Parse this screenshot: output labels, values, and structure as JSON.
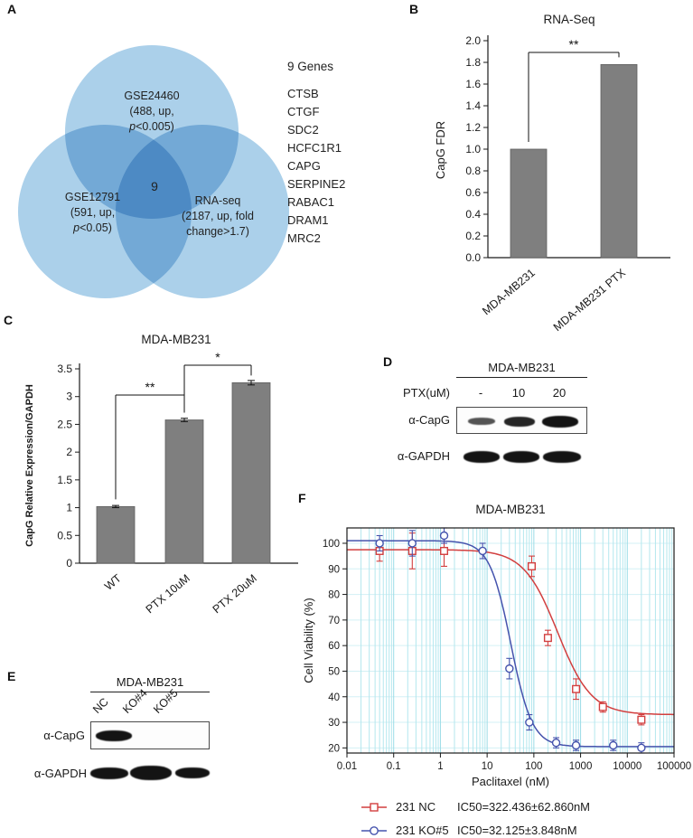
{
  "panels": {
    "a": {
      "label": "A",
      "venn": {
        "top": {
          "name": "GSE24460",
          "line2": "(488, up,",
          "p": "p",
          "line3": "<0.005)"
        },
        "left": {
          "name": "GSE12791",
          "line2": "(591, up,",
          "p": "p",
          "line3": "<0.05)"
        },
        "right": {
          "name": "RNA-seq",
          "line2": "(2187, up, fold",
          "line3": "change>1.7)"
        },
        "overlap_count": "9"
      },
      "genes": {
        "title": "9 Genes",
        "items": [
          "CTSB",
          "CTGF",
          "SDC2",
          "HCFC1R1",
          "CAPG",
          "SERPINE2",
          "RABAC1",
          "DRAM1",
          "MRC2"
        ]
      }
    },
    "b": {
      "label": "B"
    },
    "c": {
      "label": "C"
    },
    "d": {
      "label": "D",
      "title": "MDA-MB231",
      "dose_label": "PTX(uM)",
      "doses": [
        "-",
        "10",
        "20"
      ],
      "rows": [
        "α-CapG",
        "α-GAPDH"
      ]
    },
    "e": {
      "label": "E",
      "title": "MDA-MB231",
      "lanes": [
        "NC",
        "KO#4",
        "KO#5"
      ],
      "rows": [
        "α-CapG",
        "α-GAPDH"
      ]
    },
    "f": {
      "label": "F"
    }
  },
  "chart_data": [
    {
      "id": "B",
      "type": "bar",
      "title": "RNA-Seq",
      "ylabel": "CapG FDR",
      "categories": [
        "MDA-MB231",
        "MDA-MB231 PTX"
      ],
      "values": [
        1.0,
        1.78
      ],
      "ylim": [
        0,
        2.0
      ],
      "ytick_step": 0.2,
      "bar_color": "#7f7f7f",
      "significance": [
        {
          "pair": [
            0,
            1
          ],
          "label": "**"
        }
      ]
    },
    {
      "id": "C",
      "type": "bar",
      "title": "MDA-MB231",
      "ylabel": "CapG Relative Expression/GAPDH",
      "categories": [
        "WT",
        "PTX 10uM",
        "PTX 20uM"
      ],
      "values": [
        1.02,
        2.58,
        3.25
      ],
      "errors": [
        0.02,
        0.03,
        0.04
      ],
      "ylim": [
        0,
        3.5
      ],
      "ytick_step": 0.5,
      "bar_color": "#7f7f7f",
      "significance": [
        {
          "pair": [
            0,
            1
          ],
          "label": "**"
        },
        {
          "pair": [
            1,
            2
          ],
          "label": "*"
        }
      ]
    },
    {
      "id": "F",
      "type": "line",
      "title": "MDA-MB231",
      "xlabel": "Paclitaxel (nM)",
      "ylabel": "Cell Viability (%)",
      "xscale": "log",
      "xlim": [
        0.01,
        100000
      ],
      "ylim": [
        18,
        106
      ],
      "xticks": [
        "0.01",
        "0.1",
        "1",
        "10",
        "100",
        "1000",
        "10000",
        "100000"
      ],
      "yticks": [
        20,
        30,
        40,
        50,
        60,
        70,
        80,
        90,
        100
      ],
      "grid_color": "#b4e7ee",
      "grid_color_major": "#9adce6",
      "grid_color_h": "#d3f0f5",
      "series": [
        {
          "name": "231 NC",
          "color": "#d23f3f",
          "marker": "square",
          "ic50_label": "IC50=322.436±62.860nM",
          "fit": {
            "top": 97.5,
            "bottom": 33,
            "ic50": 322.436,
            "hill": 1.2
          },
          "points": [
            [
              0.05,
              97,
              4
            ],
            [
              0.25,
              97,
              7
            ],
            [
              1.2,
              97,
              6
            ],
            [
              90,
              91,
              4
            ],
            [
              200,
              63,
              3
            ],
            [
              800,
              43,
              4
            ],
            [
              3000,
              36,
              2
            ],
            [
              20000,
              31,
              2
            ]
          ]
        },
        {
          "name": "231 KO#5",
          "color": "#4553ad",
          "marker": "circle",
          "ic50_label": "IC50=32.125±3.848nM",
          "fit": {
            "top": 101,
            "bottom": 20.5,
            "ic50": 32.125,
            "hill": 1.9
          },
          "points": [
            [
              0.05,
              100,
              3
            ],
            [
              0.25,
              100,
              5
            ],
            [
              1.2,
              103,
              3
            ],
            [
              8,
              97,
              3
            ],
            [
              30,
              51,
              4
            ],
            [
              80,
              30,
              3
            ],
            [
              300,
              22,
              2
            ],
            [
              800,
              21,
              2
            ],
            [
              5000,
              21,
              2
            ],
            [
              20000,
              20,
              2
            ]
          ]
        }
      ]
    }
  ]
}
